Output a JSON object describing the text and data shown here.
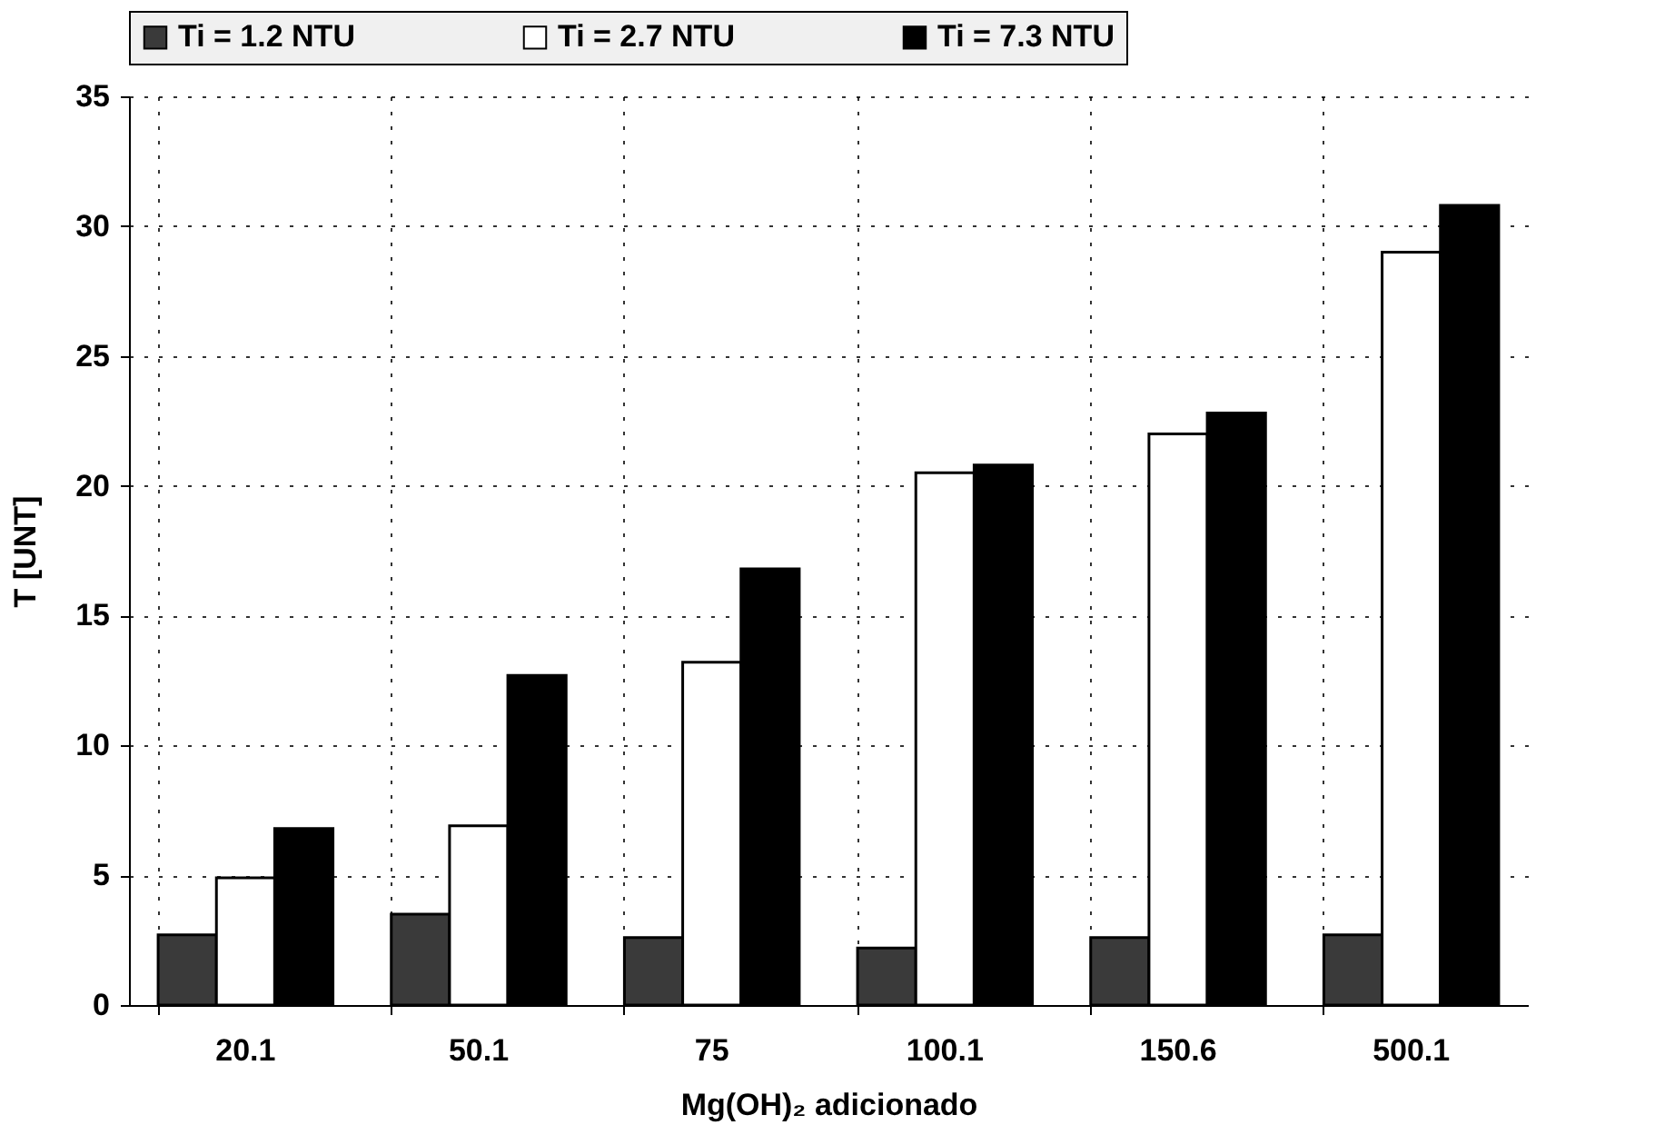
{
  "chart_data": {
    "type": "bar",
    "xlabel": "Mg(OH)₂ adicionado",
    "ylabel": "T [UNT]",
    "categories": [
      "20.1",
      "50.1",
      "75",
      "100.1",
      "150.6",
      "500.1"
    ],
    "series": [
      {
        "name": "Ti = 1.2 NTU",
        "color": "#3a3a3a",
        "values": [
          2.7,
          3.5,
          2.6,
          2.2,
          2.6,
          2.7
        ]
      },
      {
        "name": "Ti = 2.7 NTU",
        "color": "#ffffff",
        "values": [
          4.9,
          6.9,
          13.2,
          20.5,
          22.0,
          29.0
        ]
      },
      {
        "name": "Ti = 7.3 NTU",
        "color": "#000000",
        "values": [
          6.8,
          12.7,
          16.8,
          20.8,
          22.8,
          30.8
        ]
      }
    ],
    "ylim": [
      0,
      35
    ],
    "yticks": [
      0,
      5,
      10,
      15,
      20,
      25,
      30,
      35
    ],
    "grid": true,
    "legend": "top"
  }
}
